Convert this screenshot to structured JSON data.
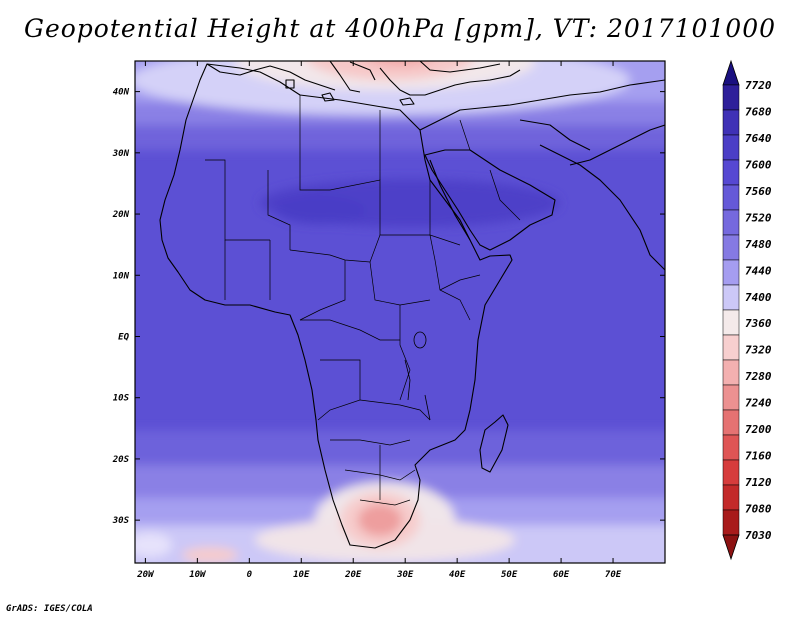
{
  "title": "Geopotential Height at 400hPa [gpm], VT: 2017101000",
  "credit": "GrADS: IGES/COLA",
  "map": {
    "lon_range": [
      -22,
      80
    ],
    "lat_range": [
      -37,
      45
    ],
    "lat_ticks": [
      {
        "value": 40,
        "label": "40N"
      },
      {
        "value": 30,
        "label": "30N"
      },
      {
        "value": 20,
        "label": "20N"
      },
      {
        "value": 10,
        "label": "10N"
      },
      {
        "value": 0,
        "label": "EQ"
      },
      {
        "value": -10,
        "label": "10S"
      },
      {
        "value": -20,
        "label": "20S"
      },
      {
        "value": -30,
        "label": "30S"
      }
    ],
    "lon_ticks": [
      {
        "value": -20,
        "label": "20W"
      },
      {
        "value": -10,
        "label": "10W"
      },
      {
        "value": 0,
        "label": "0"
      },
      {
        "value": 10,
        "label": "10E"
      },
      {
        "value": 20,
        "label": "20E"
      },
      {
        "value": 30,
        "label": "30E"
      },
      {
        "value": 40,
        "label": "40E"
      },
      {
        "value": 50,
        "label": "50E"
      },
      {
        "value": 60,
        "label": "60E"
      },
      {
        "value": 70,
        "label": "70E"
      }
    ]
  },
  "colorbar": {
    "labels": [
      "7720",
      "7680",
      "7640",
      "7600",
      "7560",
      "7520",
      "7480",
      "7440",
      "7400",
      "7360",
      "7320",
      "7280",
      "7240",
      "7200",
      "7160",
      "7120",
      "7080",
      "7030"
    ],
    "colors": [
      "#2e1f9a",
      "#3f31b6",
      "#4b3ec6",
      "#5648d2",
      "#6559d8",
      "#7569de",
      "#857ae3",
      "#a59df0",
      "#ccc8f7",
      "#f4eaea",
      "#f7cfcf",
      "#f3b0b0",
      "#ec9191",
      "#e57272",
      "#df5555",
      "#d63c3c",
      "#c32a2a",
      "#a81b1b"
    ],
    "top_arrow_color": "#1a1080",
    "bottom_arrow_color": "#8c1212"
  }
}
